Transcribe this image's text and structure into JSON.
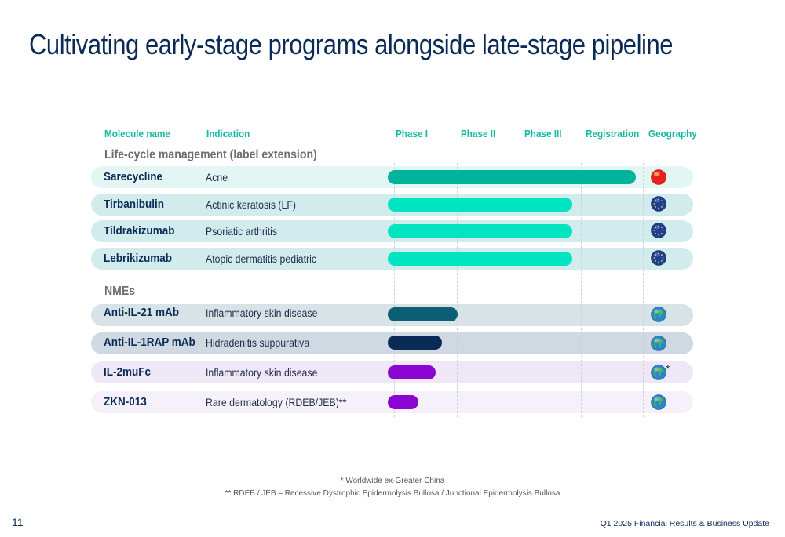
{
  "title": "Cultivating early-stage programs alongside late-stage pipeline",
  "headers": {
    "molecule": "Molecule name",
    "indication": "Indication",
    "phase1": "Phase I",
    "phase2": "Phase II",
    "phase3": "Phase III",
    "registration": "Registration",
    "geography": "Geography"
  },
  "sections": {
    "lcm": "Life-cycle management (label extension)",
    "nmes": "NMEs"
  },
  "colors": {
    "teal_dark": "#00b39b",
    "teal_bright": "#00e5c0",
    "petrol": "#0b5e73",
    "navy": "#0b2b57",
    "purple": "#8a06d0",
    "bg_mint": "#e4f6f4",
    "bg_teal": "#d2ecee",
    "bg_slate": "#d8e3e8",
    "bg_navy": "#d0d8e2",
    "bg_lavender": "#efe6f6",
    "bg_lilac": "#f6f0fb"
  },
  "chart_data": {
    "type": "table",
    "stages": [
      "Phase I",
      "Phase II",
      "Phase III",
      "Registration"
    ],
    "rows": [
      {
        "molecule": "Sarecycline",
        "indication": "Acne",
        "group": "Life-cycle management (label extension)",
        "progress_stages": 3.9,
        "geography": "china-flag-icon",
        "geo_note": ""
      },
      {
        "molecule": "Tirbanibulin",
        "indication": "Actinic keratosis (LF)",
        "group": "Life-cycle management (label extension)",
        "progress_stages": 2.9,
        "geography": "eu-flag-icon",
        "geo_note": ""
      },
      {
        "molecule": "Tildrakizumab",
        "indication": "Psoriatic arthritis",
        "group": "Life-cycle management (label extension)",
        "progress_stages": 2.9,
        "geography": "eu-flag-icon",
        "geo_note": ""
      },
      {
        "molecule": "Lebrikizumab",
        "indication": "Atopic dermatitis pediatric",
        "group": "Life-cycle management (label extension)",
        "progress_stages": 2.9,
        "geography": "eu-flag-icon",
        "geo_note": ""
      },
      {
        "molecule": "Anti-IL-21 mAb",
        "indication": "Inflammatory skin disease",
        "group": "NMEs",
        "progress_stages": 1.1,
        "geography": "globe-icon",
        "geo_note": ""
      },
      {
        "molecule": "Anti-IL-1RAP mAb",
        "indication": "Hidradenitis suppurativa",
        "group": "NMEs",
        "progress_stages": 0.85,
        "geography": "globe-icon",
        "geo_note": ""
      },
      {
        "molecule": "IL-2muFc",
        "indication": "Inflammatory skin disease",
        "group": "NMEs",
        "progress_stages": 0.75,
        "geography": "globe-icon",
        "geo_note": "*"
      },
      {
        "molecule": "ZKN-013",
        "indication": "Rare dermatology (RDEB/JEB)**",
        "group": "NMEs",
        "progress_stages": 0.48,
        "geography": "globe-icon",
        "geo_note": ""
      }
    ]
  },
  "footnotes": {
    "note1": "* Worldwide ex-Greater China",
    "note2": "** RDEB / JEB – Recessive Dystrophic Epidermolysis Bullosa / Junctional Epidermolysis Bullosa"
  },
  "page_number": "11",
  "footer": "Q1 2025 Financial Results & Business Update"
}
